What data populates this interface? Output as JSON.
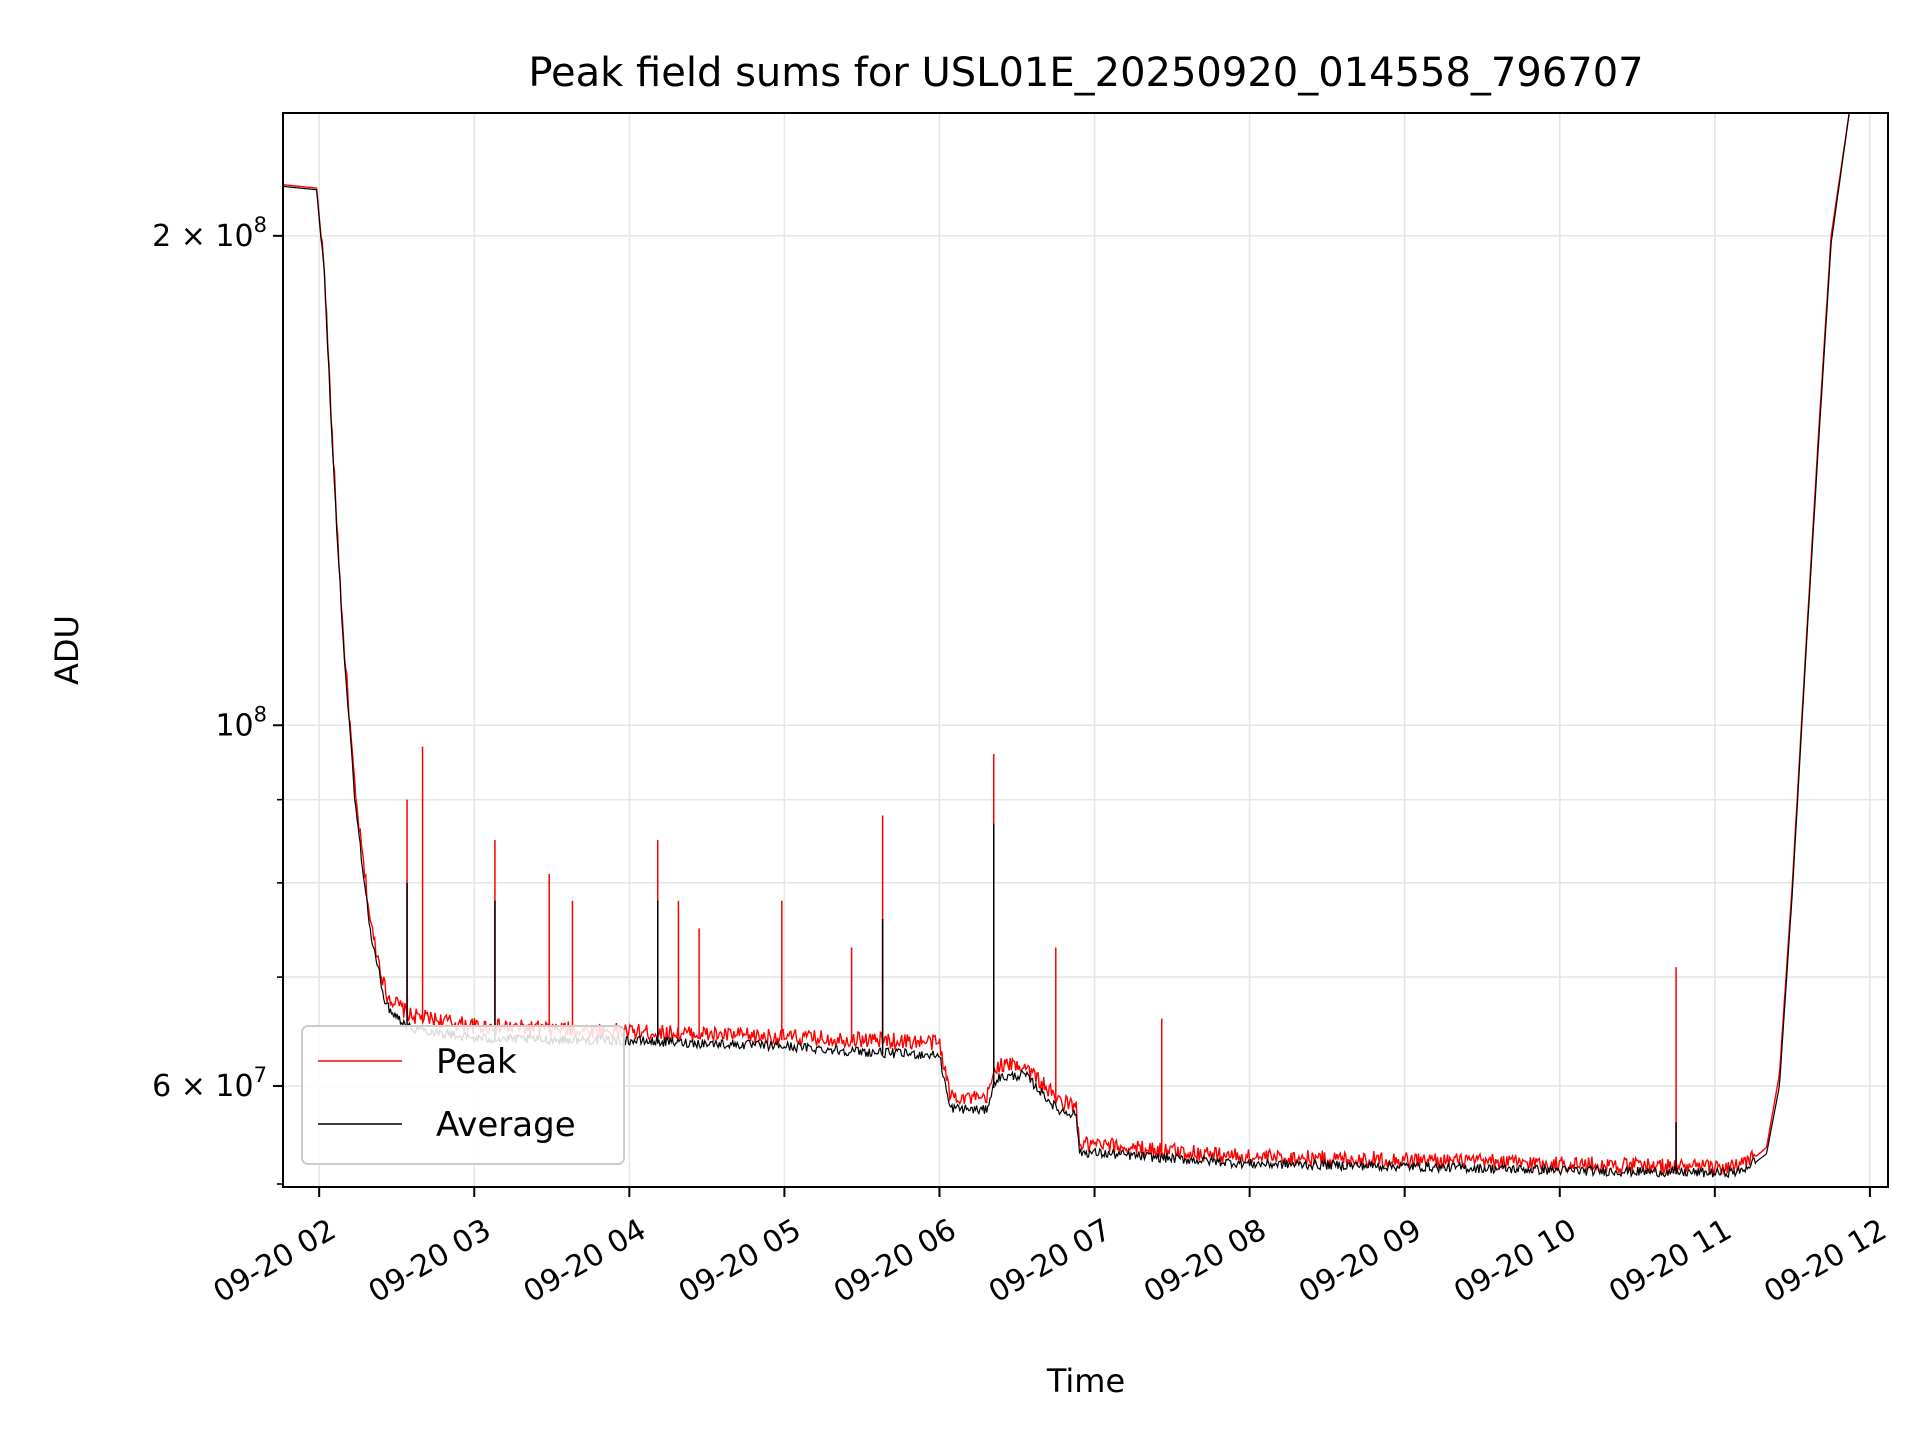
{
  "chart_data": {
    "type": "line",
    "title": "Peak field sums for USL01E_20250920_014558_796707",
    "xlabel": "Time",
    "ylabel": "ADU",
    "yscale": "log",
    "grid": true,
    "legend_placement": "lower-left",
    "x_range": [
      "2025-09-20 01:46",
      "2025-09-20 12:07"
    ],
    "ylim": [
      52000000,
      238000000
    ],
    "x_ticks": [
      {
        "value": "2025-09-20 02:00",
        "label": "09-20 02"
      },
      {
        "value": "2025-09-20 03:00",
        "label": "09-20 03"
      },
      {
        "value": "2025-09-20 04:00",
        "label": "09-20 04"
      },
      {
        "value": "2025-09-20 05:00",
        "label": "09-20 05"
      },
      {
        "value": "2025-09-20 06:00",
        "label": "09-20 06"
      },
      {
        "value": "2025-09-20 07:00",
        "label": "09-20 07"
      },
      {
        "value": "2025-09-20 08:00",
        "label": "09-20 08"
      },
      {
        "value": "2025-09-20 09:00",
        "label": "09-20 09"
      },
      {
        "value": "2025-09-20 10:00",
        "label": "09-20 10"
      },
      {
        "value": "2025-09-20 11:00",
        "label": "09-20 11"
      },
      {
        "value": "2025-09-20 12:00",
        "label": "09-20 12"
      }
    ],
    "y_ticks": [
      {
        "value": 200000000,
        "mantissa": "2 × 10",
        "exponent": "8"
      },
      {
        "value": 100000000,
        "mantissa": "10",
        "exponent": "8"
      },
      {
        "value": 60000000,
        "mantissa": "6 × 10",
        "exponent": "7"
      }
    ],
    "y_minor_ticks": [
      70000000,
      80000000,
      90000000
    ],
    "series": [
      {
        "name": "Peak",
        "color": "#ff0000",
        "baseline": [
          [
            "2025-09-20 01:46",
            215000000
          ],
          [
            "2025-09-20 01:59",
            214000000
          ],
          [
            "2025-09-20 02:02",
            190000000
          ],
          [
            "2025-09-20 02:05",
            150000000
          ],
          [
            "2025-09-20 02:09",
            115000000
          ],
          [
            "2025-09-20 02:14",
            90000000
          ],
          [
            "2025-09-20 02:20",
            75000000
          ],
          [
            "2025-09-20 02:26",
            68000000
          ],
          [
            "2025-09-20 02:35",
            66000000
          ],
          [
            "2025-09-20 03:00",
            65000000
          ],
          [
            "2025-09-20 04:00",
            64500000
          ],
          [
            "2025-09-20 05:00",
            64000000
          ],
          [
            "2025-09-20 05:30",
            63800000
          ],
          [
            "2025-09-20 06:00",
            63500000
          ],
          [
            "2025-09-20 06:04",
            59000000
          ],
          [
            "2025-09-20 06:18",
            58500000
          ],
          [
            "2025-09-20 06:22",
            61500000
          ],
          [
            "2025-09-20 06:33",
            61500000
          ],
          [
            "2025-09-20 06:46",
            58500000
          ],
          [
            "2025-09-20 06:53",
            58000000
          ],
          [
            "2025-09-20 06:54",
            55000000
          ],
          [
            "2025-09-20 07:30",
            54500000
          ],
          [
            "2025-09-20 08:00",
            54000000
          ],
          [
            "2025-09-20 09:00",
            53800000
          ],
          [
            "2025-09-20 10:00",
            53500000
          ],
          [
            "2025-09-20 11:00",
            53200000
          ],
          [
            "2025-09-20 11:10",
            53300000
          ],
          [
            "2025-09-20 11:20",
            55000000
          ],
          [
            "2025-09-20 11:25",
            61000000
          ],
          [
            "2025-09-20 11:30",
            80000000
          ],
          [
            "2025-09-20 11:35",
            110000000
          ],
          [
            "2025-09-20 11:40",
            150000000
          ],
          [
            "2025-09-20 11:45",
            200000000
          ],
          [
            "2025-09-20 11:52",
            238000000
          ]
        ],
        "spikes": [
          [
            "2025-09-20 02:34",
            90000000
          ],
          [
            "2025-09-20 02:40",
            97000000
          ],
          [
            "2025-09-20 03:08",
            85000000
          ],
          [
            "2025-09-20 03:29",
            81000000
          ],
          [
            "2025-09-20 03:38",
            78000000
          ],
          [
            "2025-09-20 04:11",
            85000000
          ],
          [
            "2025-09-20 04:19",
            78000000
          ],
          [
            "2025-09-20 04:27",
            75000000
          ],
          [
            "2025-09-20 04:59",
            78000000
          ],
          [
            "2025-09-20 05:26",
            73000000
          ],
          [
            "2025-09-20 05:38",
            88000000
          ],
          [
            "2025-09-20 06:21",
            96000000
          ],
          [
            "2025-09-20 06:45",
            73000000
          ],
          [
            "2025-09-20 07:26",
            66000000
          ],
          [
            "2025-09-20 10:45",
            71000000
          ],
          [
            "2025-09-20 11:28",
            72000000
          ]
        ]
      },
      {
        "name": "Average",
        "color": "#000000",
        "baseline": [
          [
            "2025-09-20 01:46",
            214500000
          ],
          [
            "2025-09-20 01:59",
            213500000
          ],
          [
            "2025-09-20 02:02",
            189000000
          ],
          [
            "2025-09-20 02:05",
            149000000
          ],
          [
            "2025-09-20 02:09",
            114000000
          ],
          [
            "2025-09-20 02:14",
            89000000
          ],
          [
            "2025-09-20 02:20",
            74000000
          ],
          [
            "2025-09-20 02:26",
            67000000
          ],
          [
            "2025-09-20 02:35",
            65000000
          ],
          [
            "2025-09-20 03:00",
            64000000
          ],
          [
            "2025-09-20 04:00",
            63800000
          ],
          [
            "2025-09-20 05:00",
            63300000
          ],
          [
            "2025-09-20 05:30",
            62800000
          ],
          [
            "2025-09-20 06:00",
            62500000
          ],
          [
            "2025-09-20 06:04",
            58000000
          ],
          [
            "2025-09-20 06:18",
            57800000
          ],
          [
            "2025-09-20 06:22",
            60500000
          ],
          [
            "2025-09-20 06:33",
            60800000
          ],
          [
            "2025-09-20 06:46",
            57800000
          ],
          [
            "2025-09-20 06:53",
            57500000
          ],
          [
            "2025-09-20 06:54",
            54500000
          ],
          [
            "2025-09-20 07:30",
            54000000
          ],
          [
            "2025-09-20 08:00",
            53600000
          ],
          [
            "2025-09-20 09:00",
            53400000
          ],
          [
            "2025-09-20 10:00",
            53100000
          ],
          [
            "2025-09-20 11:00",
            52900000
          ],
          [
            "2025-09-20 11:10",
            53000000
          ],
          [
            "2025-09-20 11:20",
            54500000
          ],
          [
            "2025-09-20 11:25",
            60000000
          ],
          [
            "2025-09-20 11:30",
            79000000
          ],
          [
            "2025-09-20 11:35",
            109000000
          ],
          [
            "2025-09-20 11:40",
            148000000
          ],
          [
            "2025-09-20 11:45",
            198000000
          ],
          [
            "2025-09-20 11:52",
            238000000
          ]
        ],
        "spikes": [
          [
            "2025-09-20 02:34",
            80000000
          ],
          [
            "2025-09-20 03:08",
            78000000
          ],
          [
            "2025-09-20 04:11",
            78000000
          ],
          [
            "2025-09-20 05:38",
            76000000
          ],
          [
            "2025-09-20 06:21",
            87000000
          ],
          [
            "2025-09-20 10:45",
            57000000
          ]
        ]
      }
    ]
  }
}
